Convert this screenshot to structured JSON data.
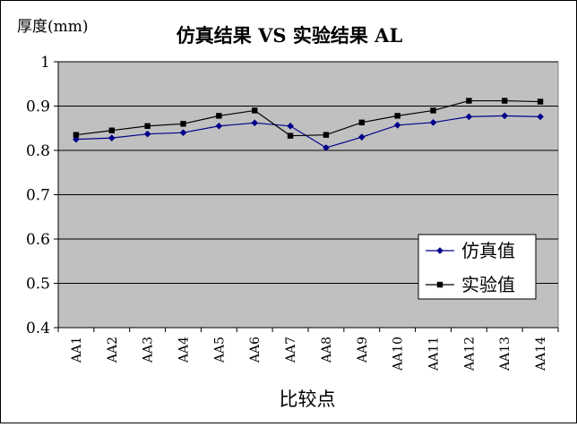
{
  "chart_data": {
    "type": "line",
    "title": "仿真结果 VS 实验结果 AL",
    "ylabel": "厚度(mm)",
    "xlabel": "比较点",
    "ylim": [
      0.4,
      1.0
    ],
    "yticks": [
      "0.4",
      "0.5",
      "0.6",
      "0.7",
      "0.8",
      "0.9",
      "1"
    ],
    "grid": true,
    "legend_position": "bottom-right",
    "categories": [
      "AA1",
      "AA2",
      "AA3",
      "AA4",
      "AA5",
      "AA6",
      "AA7",
      "AA8",
      "AA9",
      "AA10",
      "AA11",
      "AA12",
      "AA13",
      "AA14"
    ],
    "series": [
      {
        "name": "仿真值",
        "color": "#00008B",
        "marker": "diamond",
        "values": [
          0.825,
          0.828,
          0.837,
          0.84,
          0.855,
          0.862,
          0.855,
          0.806,
          0.83,
          0.857,
          0.863,
          0.876,
          0.878,
          0.876
        ]
      },
      {
        "name": "实验值",
        "color": "#000000",
        "marker": "square",
        "values": [
          0.835,
          0.845,
          0.855,
          0.86,
          0.878,
          0.89,
          0.833,
          0.835,
          0.863,
          0.878,
          0.89,
          0.912,
          0.912,
          0.91
        ]
      }
    ],
    "colors": {
      "plot_background": "#C0C0C0",
      "gridline": "#000000",
      "page_background": "#FFFFFF"
    }
  }
}
